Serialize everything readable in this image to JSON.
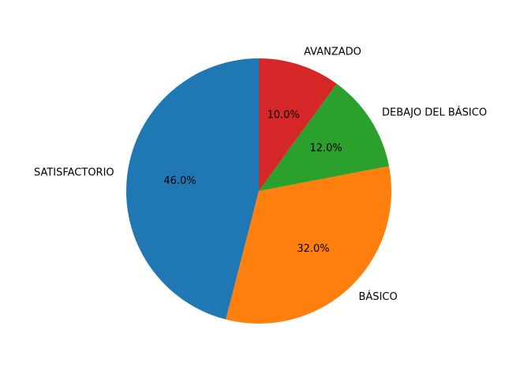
{
  "chart_data": {
    "type": "pie",
    "categories": [
      "SATISFACTORIO",
      "BÁSICO",
      "DEBAJO DEL BÁSICO",
      "AVANZADO"
    ],
    "values": [
      46.0,
      32.0,
      12.0,
      10.0
    ],
    "pct_labels": [
      "46.0%",
      "32.0%",
      "12.0%",
      "10.0%"
    ],
    "colors": [
      "#1f77b4",
      "#ff7f0e",
      "#2ca02c",
      "#d62728"
    ],
    "start_angle_deg": 90,
    "direction": "counterclockwise",
    "legend": "none"
  }
}
